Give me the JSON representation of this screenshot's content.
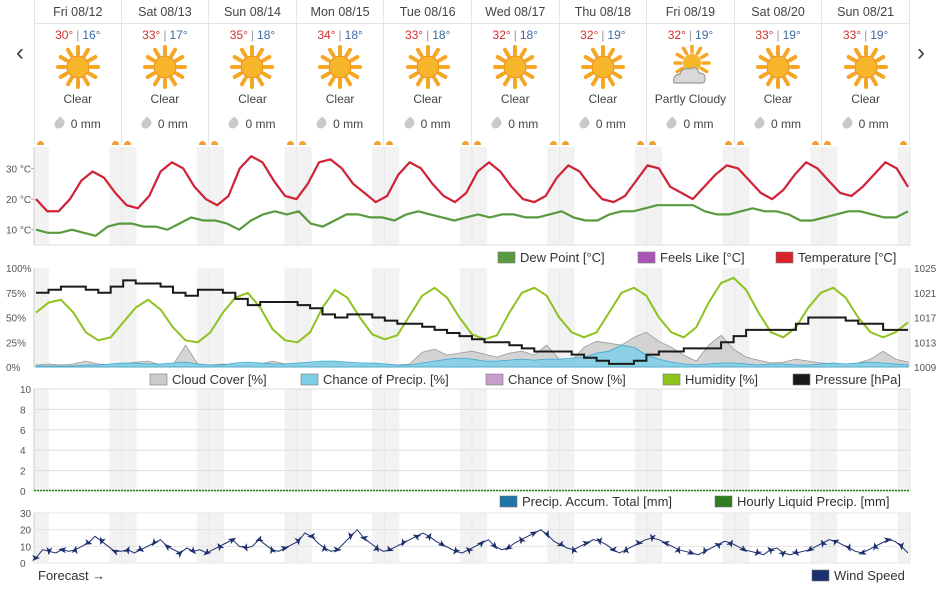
{
  "nav": {
    "prev_label": "‹",
    "next_label": "›"
  },
  "days": [
    {
      "date": "Fri 08/12",
      "hi": "30°",
      "lo": "16°",
      "condition": "Clear",
      "icon": "sun-icon",
      "precip": "0 mm"
    },
    {
      "date": "Sat 08/13",
      "hi": "33°",
      "lo": "17°",
      "condition": "Clear",
      "icon": "sun-icon",
      "precip": "0 mm"
    },
    {
      "date": "Sun 08/14",
      "hi": "35°",
      "lo": "18°",
      "condition": "Clear",
      "icon": "sun-icon",
      "precip": "0 mm"
    },
    {
      "date": "Mon 08/15",
      "hi": "34°",
      "lo": "18°",
      "condition": "Clear",
      "icon": "sun-icon",
      "precip": "0 mm"
    },
    {
      "date": "Tue 08/16",
      "hi": "33°",
      "lo": "18°",
      "condition": "Clear",
      "icon": "sun-icon",
      "precip": "0 mm"
    },
    {
      "date": "Wed 08/17",
      "hi": "32°",
      "lo": "18°",
      "condition": "Clear",
      "icon": "sun-icon",
      "precip": "0 mm"
    },
    {
      "date": "Thu 08/18",
      "hi": "32°",
      "lo": "19°",
      "condition": "Clear",
      "icon": "sun-icon",
      "precip": "0 mm"
    },
    {
      "date": "Fri 08/19",
      "hi": "32°",
      "lo": "19°",
      "condition": "Partly Cloudy",
      "icon": "partly-cloudy-icon",
      "precip": "0 mm"
    },
    {
      "date": "Sat 08/20",
      "hi": "33°",
      "lo": "19°",
      "condition": "Clear",
      "icon": "sun-icon",
      "precip": "0 mm"
    },
    {
      "date": "Sun 08/21",
      "hi": "33°",
      "lo": "19°",
      "condition": "Clear",
      "icon": "sun-icon",
      "precip": "0 mm"
    }
  ],
  "colors": {
    "temperature": "#d6222b",
    "feels_like": "#a855b5",
    "dew_point": "#5a9a3f",
    "humidity": "#8ec21f",
    "pressure": "#1a1a1a",
    "cloud_cover": "#cccccc",
    "chance_precip": "#7ecfe8",
    "chance_snow": "#c79ec9",
    "precip_total": "#1f74a6",
    "hourly_liquid": "#2e7d1e",
    "wind": "#1c2f6e",
    "night_band": "#f2f2f2"
  },
  "chart_data": [
    {
      "type": "line",
      "id": "temperature",
      "y_ticks": [
        "30 °C",
        "20 °C",
        "10 °C"
      ],
      "ylim": [
        5,
        37
      ],
      "x_days": 10,
      "series": [
        {
          "name": "Dew Point [°C]",
          "key": "dew_point",
          "values": [
            10,
            9,
            9,
            10,
            9,
            8,
            11,
            12,
            12,
            11,
            11,
            10,
            12,
            14,
            13,
            13,
            12,
            10,
            13,
            15,
            16,
            15,
            16,
            12,
            11,
            13,
            15,
            15,
            14,
            14,
            13,
            15,
            16,
            15,
            14,
            13,
            14,
            15,
            14,
            15,
            15,
            14,
            14,
            15,
            16,
            14,
            13,
            13,
            15,
            16,
            16,
            17,
            18,
            18,
            18,
            18,
            16,
            15,
            15,
            16,
            17,
            16,
            16,
            15,
            13,
            13,
            14,
            15,
            16,
            16,
            15,
            14,
            14,
            16
          ]
        },
        {
          "name": "Feels Like [°C]",
          "key": "feels_like",
          "values": [
            20,
            16,
            16,
            20,
            26,
            29,
            27,
            22,
            18,
            17,
            21,
            29,
            32,
            30,
            24,
            20,
            18,
            21,
            30,
            34,
            32,
            26,
            21,
            20,
            25,
            32,
            33,
            30,
            25,
            22,
            19,
            21,
            28,
            32,
            30,
            25,
            21,
            19,
            22,
            29,
            32,
            29,
            24,
            20,
            19,
            21,
            27,
            31,
            29,
            24,
            20,
            19,
            21,
            26,
            31,
            30,
            24,
            22,
            20,
            24,
            28,
            31,
            30,
            26,
            22,
            20,
            23,
            28,
            32,
            30,
            26,
            22,
            21,
            24,
            28,
            32,
            30,
            24
          ]
        },
        {
          "name": "Temperature [°C]",
          "key": "temperature",
          "values": [
            20,
            16,
            16,
            20,
            26,
            29,
            27,
            22,
            18,
            17,
            21,
            29,
            32,
            30,
            24,
            20,
            18,
            21,
            30,
            34,
            32,
            26,
            21,
            20,
            25,
            32,
            33,
            30,
            25,
            22,
            19,
            21,
            28,
            32,
            30,
            25,
            21,
            19,
            22,
            29,
            32,
            29,
            24,
            20,
            19,
            21,
            27,
            31,
            29,
            24,
            20,
            19,
            21,
            26,
            31,
            30,
            24,
            22,
            20,
            24,
            28,
            31,
            30,
            26,
            22,
            20,
            23,
            28,
            32,
            30,
            26,
            22,
            21,
            24,
            28,
            32,
            30,
            24
          ]
        }
      ]
    },
    {
      "type": "line",
      "id": "humidity-panel",
      "y_ticks_left": [
        "100%",
        "75%",
        "50%",
        "25%",
        "0%"
      ],
      "y_ticks_right": [
        "1025",
        "1021",
        "1017",
        "1013",
        "1009"
      ],
      "ylim": [
        0,
        100
      ],
      "y2lim": [
        1009,
        1025
      ],
      "series": [
        {
          "name": "Cloud Cover [%]",
          "key": "cloud_cover",
          "values": [
            2,
            3,
            2,
            3,
            6,
            3,
            2,
            3,
            5,
            6,
            2,
            2,
            22,
            3,
            2,
            3,
            2,
            2,
            3,
            6,
            3,
            2,
            2,
            4,
            4,
            3,
            2,
            3,
            3,
            2,
            3,
            15,
            18,
            12,
            14,
            16,
            13,
            10,
            14,
            16,
            12,
            22,
            8,
            6,
            20,
            26,
            24,
            22,
            30,
            35,
            26,
            20,
            12,
            6,
            22,
            32,
            18,
            10,
            7,
            4,
            5,
            8,
            6,
            4,
            3,
            3,
            4,
            8,
            16,
            8,
            5
          ]
        },
        {
          "name": "Chance of Precip. [%]",
          "key": "chance_precip",
          "values": [
            1,
            1,
            1,
            1,
            2,
            2,
            3,
            4,
            4,
            3,
            3,
            4,
            5,
            3,
            2,
            2,
            4,
            5,
            4,
            3,
            3,
            4,
            5,
            6,
            6,
            5,
            4,
            4,
            3,
            2,
            2,
            4,
            6,
            8,
            9,
            8,
            6,
            6,
            7,
            8,
            7,
            8,
            8,
            9,
            10,
            14,
            16,
            22,
            20,
            12,
            8,
            5,
            3,
            2,
            3,
            4,
            4,
            3,
            2,
            3,
            3,
            2,
            2,
            3,
            4,
            3,
            4,
            5,
            4,
            3,
            2
          ]
        },
        {
          "name": "Chance of Snow [%]",
          "key": "chance_snow",
          "values": [
            0,
            0,
            0,
            0,
            0,
            0,
            0,
            0,
            0,
            0,
            0,
            0,
            0,
            0,
            0,
            0,
            0,
            0,
            0,
            0,
            0,
            0,
            0,
            0,
            0,
            0,
            0,
            0,
            0,
            0,
            0,
            0,
            0,
            0,
            0,
            0,
            0,
            0,
            0,
            0,
            0,
            0,
            0,
            0,
            0,
            0,
            0,
            0,
            0,
            0,
            0,
            0,
            0,
            0,
            0,
            0,
            0,
            0,
            0,
            0,
            0,
            0,
            0,
            0,
            0,
            0,
            0,
            0,
            0,
            0,
            0
          ]
        },
        {
          "name": "Humidity [%]",
          "key": "humidity",
          "values": [
            55,
            65,
            68,
            55,
            35,
            27,
            30,
            45,
            60,
            68,
            58,
            40,
            27,
            25,
            35,
            55,
            70,
            75,
            60,
            38,
            27,
            25,
            35,
            60,
            78,
            70,
            50,
            33,
            28,
            32,
            52,
            72,
            80,
            70,
            50,
            33,
            28,
            32,
            55,
            75,
            80,
            72,
            50,
            35,
            30,
            35,
            55,
            75,
            80,
            72,
            50,
            35,
            30,
            40,
            65,
            85,
            90,
            78,
            55,
            35,
            30,
            40,
            60,
            75,
            80,
            70,
            50,
            35,
            30,
            35,
            45
          ]
        },
        {
          "name": "Pressure [hPa]",
          "key": "pressure",
          "values": [
            1021,
            1021.5,
            1022,
            1022,
            1021.5,
            1021,
            1022,
            1023,
            1022.5,
            1022.5,
            1022,
            1021,
            1020.5,
            1021.5,
            1021.5,
            1021,
            1020,
            1019,
            1019.5,
            1019.5,
            1019.5,
            1019,
            1018.5,
            1017.5,
            1017,
            1017.5,
            1017.5,
            1017,
            1016.5,
            1016,
            1016,
            1015.5,
            1015,
            1014.5,
            1014,
            1013.5,
            1013,
            1013,
            1012.5,
            1012,
            1011.5,
            1011.5,
            1011.5,
            1011,
            1010.5,
            1010,
            1009.5,
            1009.5,
            1010,
            1011,
            1011.5,
            1011.5,
            1012,
            1012,
            1012,
            1013,
            1014,
            1015,
            1015,
            1015,
            1015,
            1016,
            1017,
            1017,
            1017,
            1016.5,
            1016,
            1016,
            1015,
            1015,
            1015
          ]
        }
      ]
    },
    {
      "type": "area",
      "id": "precipitation",
      "y_ticks": [
        "10",
        "8",
        "6",
        "4",
        "2",
        "0"
      ],
      "ylim": [
        0,
        10
      ],
      "series": [
        {
          "name": "Precip. Accum. Total [mm]",
          "key": "precip_total",
          "values": [
            0,
            0,
            0,
            0,
            0,
            0,
            0,
            0,
            0,
            0
          ]
        },
        {
          "name": "Hourly Liquid Precip. [mm]",
          "key": "hourly_liquid",
          "values": [
            0,
            0,
            0,
            0,
            0,
            0,
            0,
            0,
            0,
            0
          ]
        }
      ]
    },
    {
      "type": "line",
      "id": "wind",
      "y_ticks": [
        "30",
        "20",
        "10",
        "0"
      ],
      "ylim": [
        0,
        30
      ],
      "series": [
        {
          "name": "Wind Speed",
          "key": "wind",
          "values": [
            3,
            8,
            7,
            6,
            8,
            7,
            8,
            10,
            12,
            16,
            13,
            10,
            7,
            7,
            8,
            6,
            8,
            10,
            12,
            14,
            10,
            8,
            6,
            9,
            7,
            8,
            6,
            8,
            10,
            12,
            14,
            10,
            9,
            10,
            14,
            11,
            8,
            7,
            9,
            11,
            13,
            18,
            16,
            12,
            9,
            7,
            8,
            12,
            16,
            20,
            15,
            12,
            9,
            7,
            8,
            10,
            12,
            14,
            16,
            18,
            16,
            13,
            11,
            9,
            7,
            6,
            8,
            10,
            12,
            14,
            10,
            8,
            9,
            12,
            14,
            16,
            18,
            20,
            17,
            13,
            11,
            9,
            8,
            10,
            12,
            14,
            13,
            11,
            8,
            6,
            8,
            10,
            12,
            14,
            15,
            14,
            12,
            10,
            8,
            7,
            6,
            5,
            7,
            9,
            11,
            13,
            12,
            10,
            8,
            7,
            6,
            5,
            8,
            9,
            6,
            5,
            6,
            7,
            8,
            10,
            12,
            14,
            13,
            11,
            9,
            7,
            6,
            8,
            10,
            12,
            14,
            13,
            10,
            6
          ]
        }
      ]
    }
  ],
  "legend_temp": {
    "dew_point": "Dew Point [°C]",
    "feels_like": "Feels Like [°C]",
    "temperature": "Temperature [°C]"
  },
  "legend_humidity": {
    "cloud_cover": "Cloud Cover [%]",
    "chance_precip": "Chance of Precip. [%]",
    "chance_snow": "Chance of Snow [%]",
    "humidity": "Humidity [%]",
    "pressure": "Pressure [hPa]"
  },
  "legend_precip": {
    "precip_total": "Precip. Accum. Total [mm]",
    "hourly_liquid": "Hourly Liquid Precip. [mm]"
  },
  "legend_wind": {
    "wind": "Wind Speed"
  },
  "forecast_label": "Forecast →"
}
